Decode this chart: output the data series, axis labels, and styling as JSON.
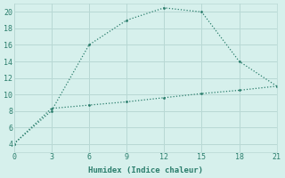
{
  "line1_x": [
    0,
    3,
    6,
    9,
    12,
    15,
    18,
    21
  ],
  "line1_y": [
    4,
    8,
    16,
    19,
    20.5,
    20,
    14,
    11
  ],
  "line2_x": [
    0,
    3,
    6,
    9,
    12,
    15,
    18,
    21
  ],
  "line2_y": [
    4,
    8.3,
    8.7,
    9.1,
    9.6,
    10.1,
    10.5,
    11
  ],
  "line_color": "#2a7d6c",
  "bg_color": "#d6f0ec",
  "grid_color": "#b8d8d4",
  "xlabel": "Humidex (Indice chaleur)",
  "xlim": [
    0,
    21
  ],
  "ylim": [
    3,
    21
  ],
  "xticks": [
    0,
    3,
    6,
    9,
    12,
    15,
    18,
    21
  ],
  "yticks": [
    4,
    6,
    8,
    10,
    12,
    14,
    16,
    18,
    20
  ]
}
